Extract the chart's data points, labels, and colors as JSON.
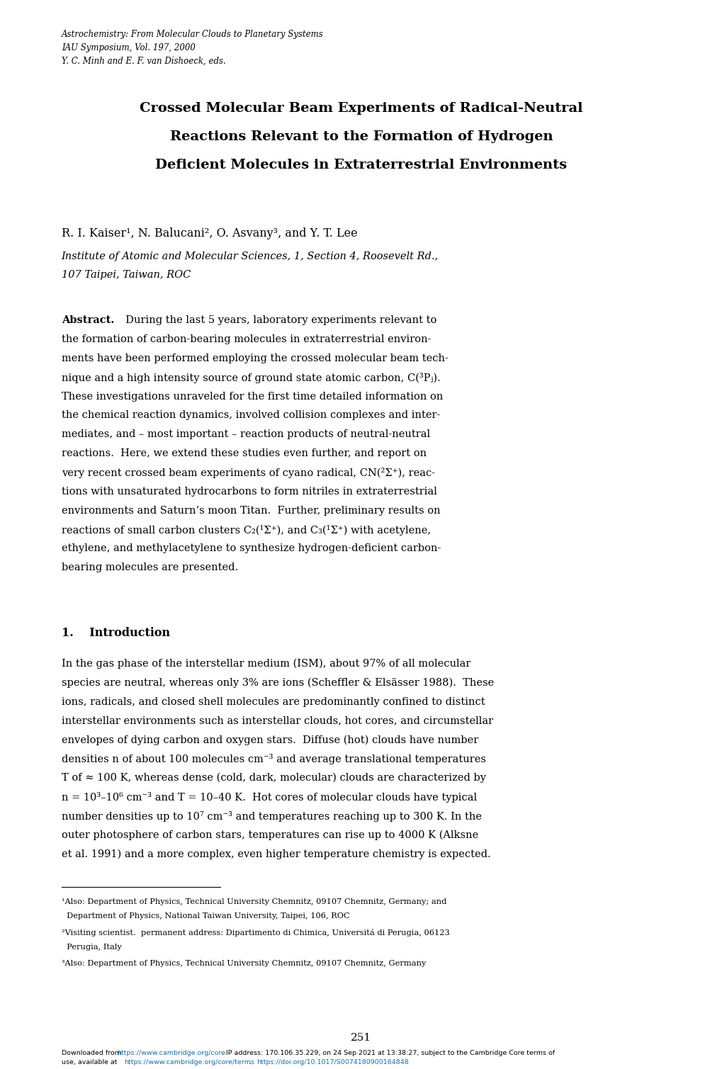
{
  "bg_color": "#ffffff",
  "page_width": 10.2,
  "page_height": 15.09,
  "header_italic": [
    "Astrochemistry: From Molecular Clouds to Planetary Systems",
    "IAU Symposium, Vol. 197, 2000",
    "Y. C. Minh and E. F. van Dishoeck, eds."
  ],
  "title_lines": [
    "Crossed Molecular Beam Experiments of Radical-Neutral",
    "Reactions Relevant to the Formation of Hydrogen",
    "Deficient Molecules in Extraterrestrial Environments"
  ],
  "authors": "R. I. Kaiser¹, N. Balucani², O. Asvany³, and Y. T. Lee",
  "affiliation_line1": "Institute of Atomic and Molecular Sciences, 1, Section 4, Roosevelt Rd.,",
  "affiliation_line2": "107 Taipei, Taiwan, ROC",
  "abstract_label": "Abstract.",
  "abstract_body_lines": [
    "  During the last 5 years, laboratory experiments relevant to",
    "the formation of carbon-bearing molecules in extraterrestrial environ-",
    "ments have been performed employing the crossed molecular beam tech-",
    "nique and a high intensity source of ground state atomic carbon, C(³Pⱼ).",
    "These investigations unraveled for the first time detailed information on",
    "the chemical reaction dynamics, involved collision complexes and inter-",
    "mediates, and – most important – reaction products of neutral-neutral",
    "reactions.  Here, we extend these studies even further, and report on",
    "very recent crossed beam experiments of cyano radical, CN(²Σ⁺), reac-",
    "tions with unsaturated hydrocarbons to form nitriles in extraterrestrial",
    "environments and Saturn’s moon Titan.  Further, preliminary results on",
    "reactions of small carbon clusters C₂(¹Σ⁺), and C₃(¹Σ⁺) with acetylene,",
    "ethylene, and methylacetylene to synthesize hydrogen-deficient carbon-",
    "bearing molecules are presented."
  ],
  "section_title": "1.    Introduction",
  "intro_lines": [
    "In the gas phase of the interstellar medium (ISM), about 97% of all molecular",
    "species are neutral, whereas only 3% are ions (Scheffler & Elsässer 1988).  These",
    "ions, radicals, and closed shell molecules are predominantly confined to distinct",
    "interstellar environments such as interstellar clouds, hot cores, and circumstellar",
    "envelopes of dying carbon and oxygen stars.  Diffuse (hot) clouds have number",
    "densities n of about 100 molecules cm⁻³ and average translational temperatures",
    "T of ≈ 100 K, whereas dense (cold, dark, molecular) clouds are characterized by",
    "n = 10³–10⁶ cm⁻³ and T = 10–40 K.  Hot cores of molecular clouds have typical",
    "number densities up to 10⁷ cm⁻³ and temperatures reaching up to 300 K. In the",
    "outer photosphere of carbon stars, temperatures can rise up to 4000 K (Alksne",
    "et al. 1991) and a more complex, even higher temperature chemistry is expected."
  ],
  "footnote1_line1": "¹Also: Department of Physics, Technical University Chemnitz, 09107 Chemnitz, Germany; and",
  "footnote1_line2": "  Department of Physics, National Taiwan University, Taipei, 106, ROC",
  "footnote2_line1": "²Visiting scientist.  permanent address: Dipartimento di Chimica, Universitá di Perugia, 06123",
  "footnote2_line2": "  Perugia, Italy",
  "footnote3": "³Also: Department of Physics, Technical University Chemnitz, 09107 Chemnitz, Germany",
  "page_number": "251",
  "dl_black1": "Downloaded from ",
  "dl_url1": "https://www.cambridge.org/core",
  "dl_black2": ". IP address: 170.106.35.229, on 24 Sep 2021 at 13:38:27, subject to the Cambridge Core terms of",
  "dl_black3": "use, available at ",
  "dl_url2": "https://www.cambridge.org/core/terms",
  "dl_black4": ". ",
  "dl_url3": "https://doi.org/10.1017/S0074180900164848",
  "url_color": "#1a6fa8"
}
